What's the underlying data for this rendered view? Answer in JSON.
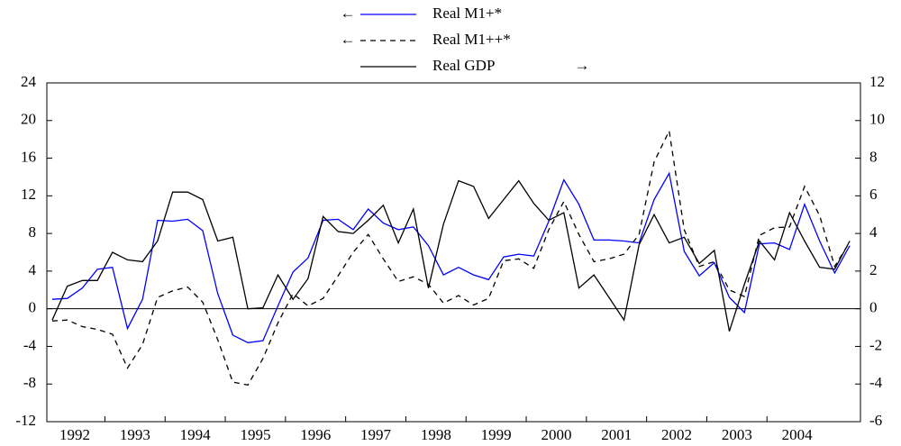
{
  "chart_data": {
    "type": "line",
    "categories": [
      "1992",
      null,
      null,
      null,
      "1993",
      null,
      null,
      null,
      "1994",
      null,
      null,
      null,
      "1995",
      null,
      null,
      null,
      "1996",
      null,
      null,
      null,
      "1997",
      null,
      null,
      null,
      "1998",
      null,
      null,
      null,
      "1999",
      null,
      null,
      null,
      "2000",
      null,
      null,
      null,
      "2001",
      null,
      null,
      null,
      "2002",
      null,
      null,
      null,
      "2003",
      null,
      null,
      null,
      "2004",
      null,
      null,
      null,
      null,
      null
    ],
    "series": [
      {
        "name": "Real M1+*",
        "color": "#0000ff",
        "dash": false,
        "values": [
          1.0,
          1.1,
          2.2,
          4.2,
          4.4,
          -2.1,
          1.0,
          9.4,
          9.3,
          9.5,
          8.3,
          1.6,
          -2.8,
          -3.6,
          -3.4,
          0.3,
          3.9,
          5.4,
          9.4,
          9.5,
          8.4,
          10.6,
          9.1,
          8.4,
          8.7,
          6.7,
          3.6,
          4.4,
          3.6,
          3.1,
          5.5,
          5.8,
          5.6,
          9.3,
          13.7,
          11.1,
          7.3,
          7.3,
          7.2,
          7.0,
          11.6,
          14.4,
          6.1,
          3.5,
          4.9,
          1.2,
          -0.4,
          6.9,
          7.0,
          6.3,
          11.1,
          7.2,
          3.8,
          6.7
        ]
      },
      {
        "name": "Real M1++*",
        "color": "#000000",
        "dash": true,
        "values": [
          -1.3,
          -1.2,
          -1.9,
          -2.2,
          -2.7,
          -6.3,
          -3.8,
          1.2,
          1.9,
          2.3,
          0.7,
          -3.3,
          -7.8,
          -8.1,
          -5.3,
          -1.5,
          1.6,
          0.3,
          1.1,
          3.5,
          6.0,
          7.9,
          5.3,
          2.9,
          3.4,
          2.6,
          0.6,
          1.4,
          0.4,
          1.1,
          5.1,
          5.3,
          4.3,
          8.4,
          11.4,
          7.9,
          5.0,
          5.3,
          5.8,
          7.9,
          15.6,
          18.9,
          8.4,
          4.5,
          5.0,
          2.0,
          1.3,
          7.8,
          8.6,
          8.7,
          13.0,
          9.9,
          4.5,
          7.1
        ]
      },
      {
        "name": "Real GDP",
        "color": "#000000",
        "dash": false,
        "axis": "y2",
        "values": [
          -0.6,
          1.2,
          1.5,
          1.5,
          3.0,
          2.6,
          2.5,
          3.6,
          6.2,
          6.2,
          5.8,
          3.6,
          3.8,
          0.0,
          0.05,
          1.8,
          0.5,
          1.6,
          4.9,
          4.1,
          4.0,
          4.7,
          5.5,
          3.5,
          5.3,
          1.1,
          4.5,
          6.8,
          6.5,
          4.8,
          5.8,
          6.8,
          5.6,
          4.7,
          5.1,
          1.1,
          1.8,
          0.6,
          -0.6,
          3.4,
          5.0,
          3.5,
          3.8,
          2.4,
          3.1,
          -1.2,
          1.3,
          3.6,
          2.6,
          5.1,
          3.6,
          2.2,
          2.1,
          3.6
        ]
      }
    ],
    "ylim": [
      -12,
      24
    ],
    "yticks": [
      -12,
      -8,
      -4,
      0,
      4,
      8,
      12,
      16,
      20,
      24
    ],
    "y2lim": [
      -6,
      12
    ],
    "y2ticks": [
      -6,
      -4,
      -2,
      0,
      2,
      4,
      6,
      8,
      10,
      12
    ],
    "zero_line": true
  }
}
